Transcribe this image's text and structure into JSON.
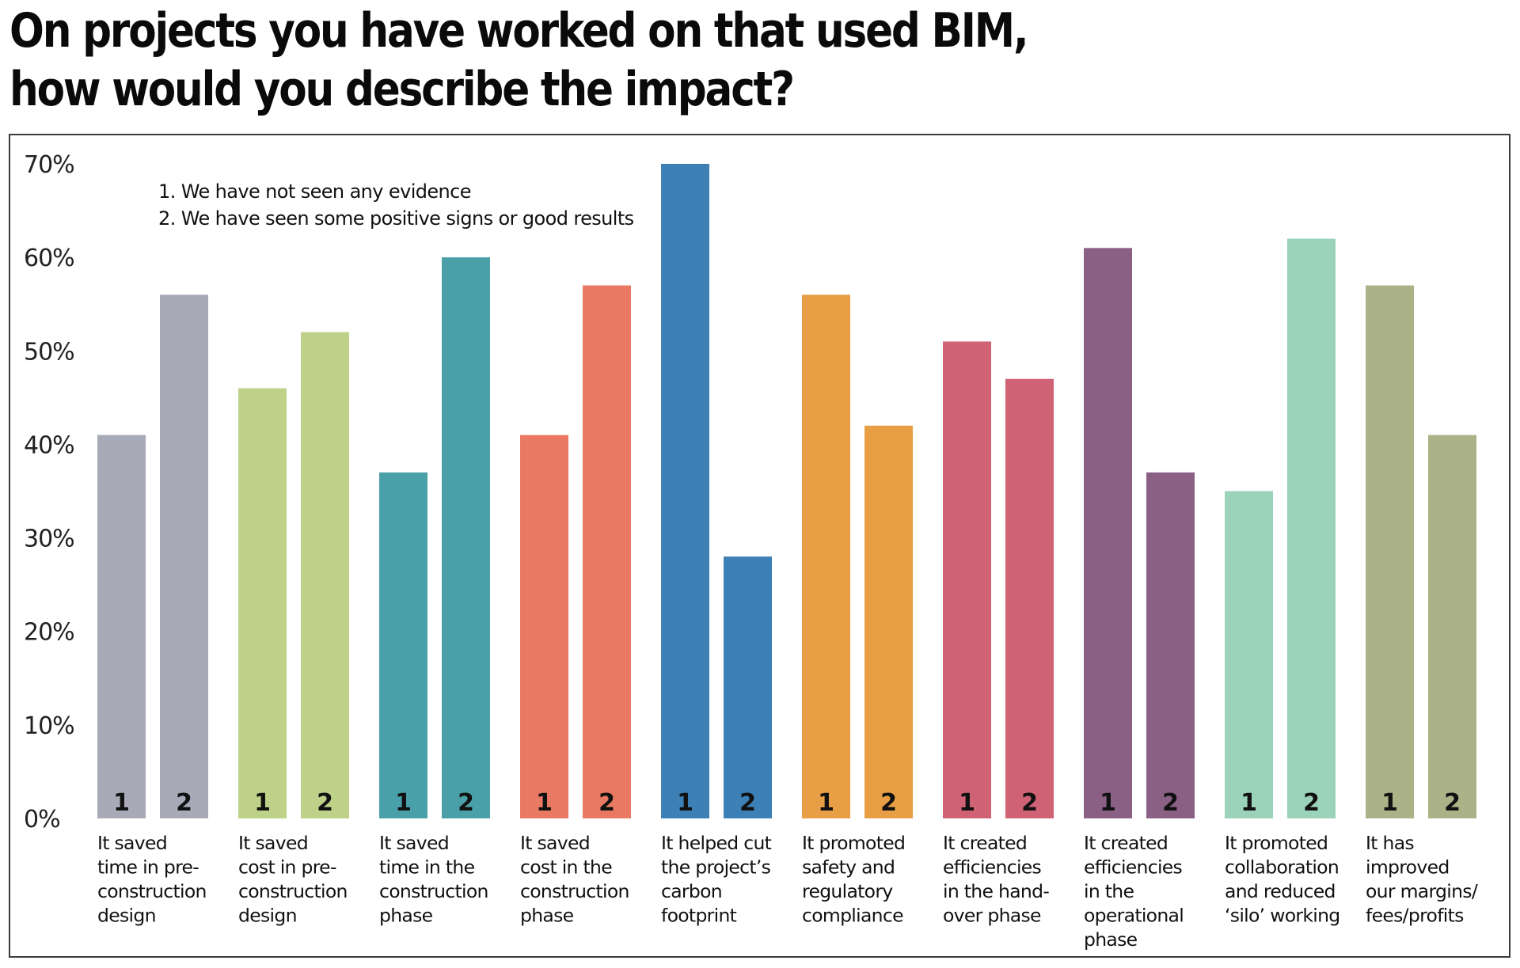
{
  "title_lines": [
    "On projects you have worked on that used BIM,",
    "how would you describe the impact?"
  ],
  "chart_data": {
    "type": "bar",
    "title": "On projects you have worked on that used BIM, how would you describe the impact?",
    "xlabel": "",
    "ylabel": "",
    "ylim": [
      0,
      70
    ],
    "yticks": [
      "0%",
      "10%",
      "20%",
      "30%",
      "40%",
      "50%",
      "60%",
      "70%"
    ],
    "ytick_values": [
      0,
      10,
      20,
      30,
      40,
      50,
      60,
      70
    ],
    "grid": false,
    "legend_position": "top-left",
    "legend": [
      "1. We have not seen any evidence",
      "2. We have seen some positive signs or good results"
    ],
    "bar_labels": [
      "1",
      "2"
    ],
    "categories": [
      [
        "It saved",
        "time in pre-",
        "construction",
        "design"
      ],
      [
        "It saved",
        "cost in pre-",
        "construction",
        "design"
      ],
      [
        "It saved",
        "time in the",
        "construction",
        "phase"
      ],
      [
        "It saved",
        "cost in the",
        "construction",
        "phase"
      ],
      [
        "It helped cut",
        "the project’s",
        "carbon",
        "footprint"
      ],
      [
        "It promoted",
        "safety and",
        "regulatory",
        "compliance"
      ],
      [
        "It created",
        "efficiencies",
        "in the hand-",
        "over phase"
      ],
      [
        "It created",
        "efficiencies",
        "in the",
        "operational",
        "phase"
      ],
      [
        "It promoted",
        "collaboration",
        "and reduced",
        "‘silo’ working"
      ],
      [
        "It has",
        "improved",
        "our margins/",
        "fees/profits"
      ]
    ],
    "series": [
      {
        "name": "1. We have not seen any evidence",
        "values": [
          41,
          46,
          37,
          41,
          70,
          56,
          51,
          61,
          35,
          57
        ]
      },
      {
        "name": "2. We have seen some positive signs or good results",
        "values": [
          56,
          52,
          60,
          57,
          28,
          42,
          47,
          37,
          62,
          41
        ]
      }
    ],
    "colors": [
      "#a9aab8",
      "#bdd189",
      "#4aa0a8",
      "#e97962",
      "#3c80b6",
      "#e89e45",
      "#d06275",
      "#8a6085",
      "#9bd2ba",
      "#abb287"
    ],
    "value_unit": "%"
  }
}
